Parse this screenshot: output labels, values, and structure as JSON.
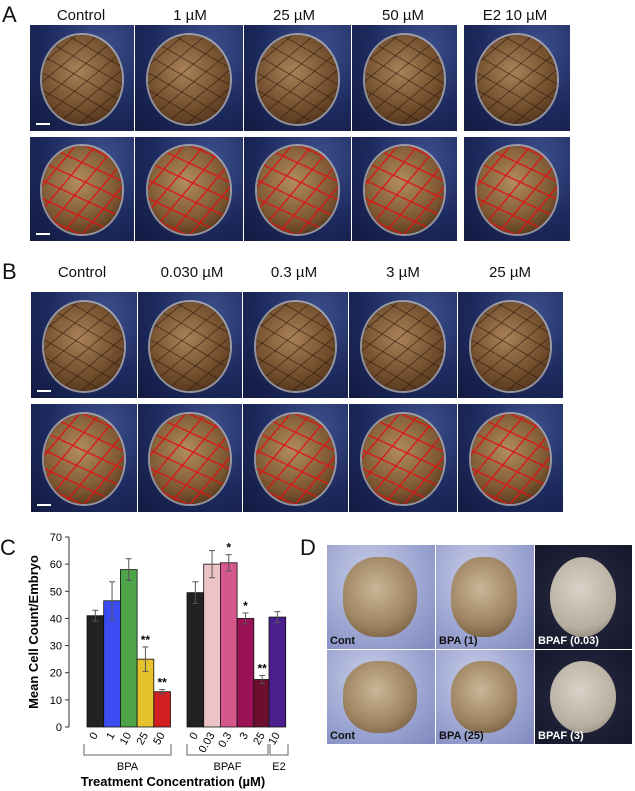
{
  "panel_a": {
    "letter": "A",
    "columns": [
      "Control",
      "1 µM",
      "25 µM",
      "50 µM",
      "E2 10 µM"
    ]
  },
  "panel_b": {
    "letter": "B",
    "columns": [
      "Control",
      "0.030 µM",
      "0.3 µM",
      "3 µM",
      "25 µM"
    ]
  },
  "panel_c": {
    "letter": "C"
  },
  "panel_d": {
    "letter": "D",
    "images": [
      {
        "label": "Cont",
        "bg": "light"
      },
      {
        "label": "BPA (1)",
        "bg": "light"
      },
      {
        "label": "BPAF (0.03)",
        "bg": "dark"
      },
      {
        "label": "Cont",
        "bg": "light"
      },
      {
        "label": "BPA (25)",
        "bg": "light"
      },
      {
        "label": "BPAF (3)",
        "bg": "dark"
      }
    ]
  },
  "chart_data": {
    "type": "bar",
    "title": "",
    "ylabel": "Mean Cell Count/Embryo",
    "xlabel": "Treatment Concentration (µM)",
    "ylim": [
      0,
      70
    ],
    "yticks": [
      0,
      10,
      20,
      30,
      40,
      50,
      60,
      70
    ],
    "grid": false,
    "groups": [
      {
        "name": "BPA",
        "categories": [
          "0",
          "1",
          "10",
          "25",
          "50"
        ],
        "values": [
          41,
          46.5,
          58,
          25,
          13
        ],
        "errors": [
          2,
          7,
          4,
          4.5,
          0.8
        ],
        "significance": [
          "",
          "",
          "",
          "**",
          "**"
        ],
        "colors": [
          "#222222",
          "#3a4cf2",
          "#4fa449",
          "#e6c22c",
          "#d21f1f"
        ]
      },
      {
        "name": "BPAF",
        "categories": [
          "0",
          "0.03",
          "0.3",
          "3",
          "25"
        ],
        "values": [
          49.5,
          60,
          60.5,
          40,
          17.5
        ],
        "errors": [
          4,
          5,
          3,
          2,
          1.5
        ],
        "significance": [
          "",
          "",
          "*",
          "*",
          "**"
        ],
        "colors": [
          "#222222",
          "#ecc3c6",
          "#d4588c",
          "#9b1156",
          "#6c0f2e"
        ]
      },
      {
        "name": "E2",
        "categories": [
          "10"
        ],
        "values": [
          40.5
        ],
        "errors": [
          2
        ],
        "significance": [
          ""
        ],
        "colors": [
          "#4b1e8e"
        ]
      }
    ]
  }
}
